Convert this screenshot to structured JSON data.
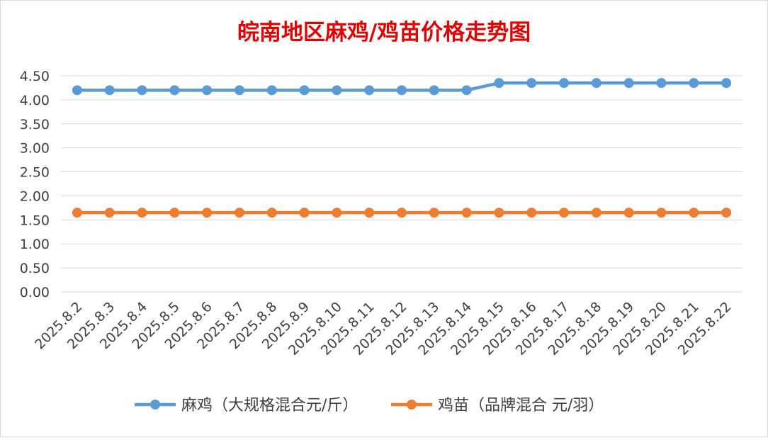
{
  "chart_data": {
    "type": "line",
    "title": "皖南地区麻鸡/鸡苗价格走势图",
    "xlabel": "",
    "ylabel": "",
    "categories": [
      "2025.8.2",
      "2025.8.3",
      "2025.8.4",
      "2025.8.5",
      "2025.8.6",
      "2025.8.7",
      "2025.8.8",
      "2025.8.9",
      "2025.8.10",
      "2025.8.11",
      "2025.8.12",
      "2025.8.13",
      "2025.8.14",
      "2025.8.15",
      "2025.8.16",
      "2025.8.17",
      "2025.8.18",
      "2025.8.19",
      "2025.8.20",
      "2025.8.21",
      "2025.8.22"
    ],
    "ylim": [
      0,
      4.5
    ],
    "yticks": [
      "0.00",
      "0.50",
      "1.00",
      "1.50",
      "2.00",
      "2.50",
      "3.00",
      "3.50",
      "4.00",
      "4.50"
    ],
    "grid": true,
    "legend_position": "bottom",
    "title_color": "#e00000",
    "series": [
      {
        "name": "麻鸡（大规格混合元/斤）",
        "color": "#5b9bd5",
        "values": [
          4.2,
          4.2,
          4.2,
          4.2,
          4.2,
          4.2,
          4.2,
          4.2,
          4.2,
          4.2,
          4.2,
          4.2,
          4.2,
          4.35,
          4.35,
          4.35,
          4.35,
          4.35,
          4.35,
          4.35,
          4.35
        ]
      },
      {
        "name": "鸡苗（品牌混合 元/羽）",
        "color": "#ed7d31",
        "values": [
          1.65,
          1.65,
          1.65,
          1.65,
          1.65,
          1.65,
          1.65,
          1.65,
          1.65,
          1.65,
          1.65,
          1.65,
          1.65,
          1.65,
          1.65,
          1.65,
          1.65,
          1.65,
          1.65,
          1.65,
          1.65
        ]
      }
    ]
  }
}
